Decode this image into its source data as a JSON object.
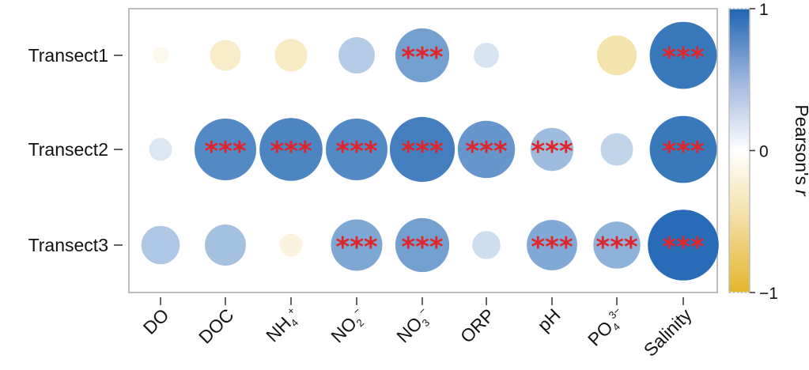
{
  "chart_data": {
    "type": "bubble-correlation-matrix",
    "rows": [
      "Transect1",
      "Transect2",
      "Transect3"
    ],
    "columns": [
      {
        "base": "DO",
        "sub": "",
        "sup": ""
      },
      {
        "base": "DOC",
        "sub": "",
        "sup": ""
      },
      {
        "base": "NH",
        "sub": "4",
        "sup": "+"
      },
      {
        "base": "NO",
        "sub": "2",
        "sup": "−"
      },
      {
        "base": "NO",
        "sub": "3",
        "sup": "−"
      },
      {
        "base": "ORP",
        "sub": "",
        "sup": ""
      },
      {
        "base": "pH",
        "sub": "",
        "sup": ""
      },
      {
        "base": "PO",
        "sub": "4",
        "sup": "3−"
      },
      {
        "base": "Salinity",
        "sub": "",
        "sup": ""
      }
    ],
    "values": [
      [
        -0.05,
        -0.18,
        -0.2,
        0.25,
        0.55,
        0.12,
        0.0,
        -0.3,
        0.85
      ],
      [
        0.1,
        0.72,
        0.75,
        0.72,
        0.8,
        0.62,
        0.35,
        0.2,
        0.85
      ],
      [
        0.28,
        0.32,
        -0.1,
        0.5,
        0.55,
        0.15,
        0.48,
        0.42,
        0.95
      ]
    ],
    "significance": [
      [
        "",
        "",
        "",
        "",
        "***",
        "",
        "",
        "",
        "***"
      ],
      [
        "",
        "***",
        "***",
        "***",
        "***",
        "***",
        "***",
        "",
        "***"
      ],
      [
        "",
        "",
        "",
        "***",
        "***",
        "",
        "***",
        "***",
        "***"
      ]
    ],
    "colorbar": {
      "label": "Pearson's",
      "label_italic": "r",
      "min": -1,
      "max": 1,
      "ticks": [
        1,
        0,
        -1
      ],
      "tick_labels": [
        "1",
        "0",
        "−1"
      ],
      "colors": {
        "negative": "#e4b52a",
        "zero": "#ffffff",
        "positive": "#1f65b3"
      }
    },
    "marker_color": "#e0252a",
    "grid": false
  }
}
